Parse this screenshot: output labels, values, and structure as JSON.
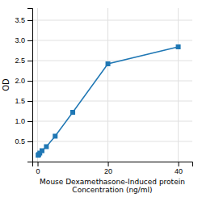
{
  "chart_data": {
    "type": "line",
    "xlabel": "Mouse Dexamethasone-Induced protein\nConcentration (ng/ml)",
    "ylabel": "OD",
    "x": [
      0.156,
      0.313,
      0.625,
      1.25,
      2.5,
      5,
      10,
      20,
      40
    ],
    "values": [
      0.158,
      0.175,
      0.21,
      0.27,
      0.37,
      0.63,
      1.22,
      2.42,
      2.84
    ],
    "marker": "square",
    "xlim": [
      -1.5,
      44
    ],
    "ylim": [
      0,
      3.8
    ],
    "xticks": [
      0,
      20,
      40
    ],
    "yticks": [
      0.5,
      {
        "value": 1,
        "label": "1.0"
      },
      1.5,
      {
        "value": 2,
        "label": "2.0"
      },
      2.5,
      {
        "value": 3,
        "label": "3.0"
      },
      3.5
    ],
    "grid": true
  }
}
